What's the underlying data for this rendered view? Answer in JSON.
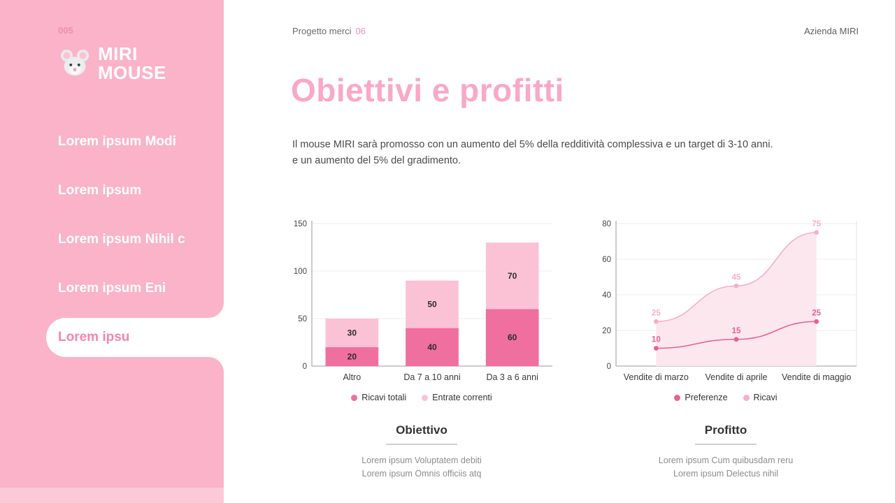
{
  "sidebar": {
    "page_number": "005",
    "logo_line1": "MIRI",
    "logo_line2": "MOUSE",
    "items": [
      {
        "label": "Lorem ipsum Modi"
      },
      {
        "label": "Lorem ipsum"
      },
      {
        "label": "Lorem ipsum Nihil c"
      },
      {
        "label": "Lorem ipsum Eni"
      },
      {
        "label": "Lorem ipsu"
      }
    ],
    "active_index": 4
  },
  "header": {
    "project_label": "Progetto merci",
    "page_ref": "06",
    "company": "Azienda MIRI"
  },
  "content": {
    "title": "Obiettivi e profitti",
    "description_line1": "Il mouse MIRI sarà promosso con un aumento del 5% della redditività complessiva e un target di 3-10 anni.",
    "description_line2": "e un aumento del 5% del gradimento."
  },
  "chart_data": [
    {
      "type": "bar",
      "stacked": true,
      "categories": [
        "Altro",
        "Da 7 a 10 anni",
        "Da 3 a 6 anni"
      ],
      "series": [
        {
          "name": "Ricavi totali",
          "values": [
            20,
            40,
            60
          ],
          "color": "#EF6F9F"
        },
        {
          "name": "Entrate correnti",
          "values": [
            30,
            50,
            70
          ],
          "color": "#FBC2D6"
        }
      ],
      "ylim": [
        0,
        150
      ],
      "yticks": [
        0,
        50,
        100,
        150
      ],
      "grid": true,
      "legend_position": "bottom"
    },
    {
      "type": "line",
      "categories": [
        "Vendite di marzo",
        "Vendite di aprile",
        "Vendite di maggio"
      ],
      "series": [
        {
          "name": "Preferenze",
          "values": [
            10,
            15,
            25
          ],
          "color": "#E8628F"
        },
        {
          "name": "Ricavi",
          "values": [
            25,
            45,
            75
          ],
          "color": "#F7AECB",
          "area": true,
          "area_fill": "#FDE7EF"
        }
      ],
      "ylim": [
        0,
        80
      ],
      "yticks": [
        0,
        20,
        40,
        60,
        80
      ],
      "grid": true,
      "legend_position": "bottom"
    }
  ],
  "sections": [
    {
      "title": "Obiettivo",
      "lines": [
        "Lorem ipsum Voluptatem debiti",
        "Lorem ipsum Omnis officiis atq"
      ]
    },
    {
      "title": "Profitto",
      "lines": [
        "Lorem ipsum Cum quibusdam reru",
        "Lorem ipsum Delectus nihil"
      ]
    }
  ],
  "colors": {
    "sidebar": "#FAB3C9",
    "sidebar_footer": "#FCC9D8",
    "accent": "#F48FB1",
    "title": "#F9A8C6",
    "active_item_text": "#F585AE"
  }
}
